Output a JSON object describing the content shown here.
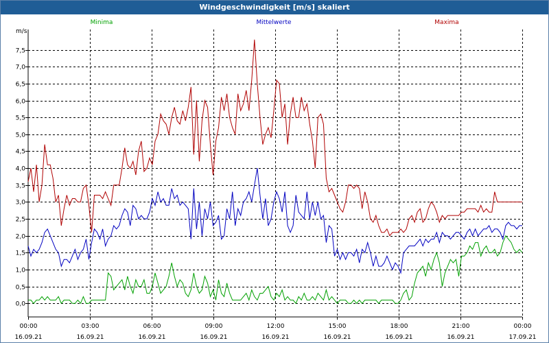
{
  "window": {
    "title": "Windgeschwindigkeit [m/s] skaliert"
  },
  "chart_data": {
    "type": "line",
    "title": "Windgeschwindigkeit [m/s] skaliert",
    "ylabel": "m/s",
    "ylim": [
      -0.4,
      8.1
    ],
    "y_ticks": [
      "0,0",
      "0,5",
      "1,0",
      "1,5",
      "2,0",
      "2,5",
      "3,0",
      "3,5",
      "4,0",
      "4,5",
      "5,0",
      "5,5",
      "6,0",
      "6,5",
      "7,0",
      "7,5"
    ],
    "x_hours_range": [
      0,
      24
    ],
    "x_ticks": [
      {
        "time": "00:00",
        "date": "16.09.21"
      },
      {
        "time": "03:00",
        "date": "16.09.21"
      },
      {
        "time": "06:00",
        "date": "16.09.21"
      },
      {
        "time": "09:00",
        "date": "16.09.21"
      },
      {
        "time": "12:00",
        "date": "16.09.21"
      },
      {
        "time": "15:00",
        "date": "16.09.21"
      },
      {
        "time": "18:00",
        "date": "16.09.21"
      },
      {
        "time": "21:00",
        "date": "16.09.21"
      },
      {
        "time": "00:00",
        "date": "17.09.21"
      }
    ],
    "grid": true,
    "series": [
      {
        "name": "Minima",
        "color": "#00a000",
        "values": [
          0.1,
          0.1,
          0.0,
          0.1,
          0.1,
          0.2,
          0.1,
          0.2,
          0.1,
          0.1,
          0.1,
          0.2,
          0.0,
          0.1,
          0.1,
          0.1,
          0.0,
          0.0,
          0.1,
          0.0,
          0.2,
          0.0,
          0.0,
          0.1,
          0.1,
          0.1,
          0.1,
          0.1,
          0.1,
          0.9,
          0.8,
          0.4,
          0.5,
          0.6,
          0.7,
          0.4,
          0.8,
          0.5,
          0.3,
          0.7,
          0.5,
          0.5,
          0.7,
          0.3,
          0.3,
          0.5,
          0.9,
          0.6,
          0.3,
          0.4,
          0.5,
          0.8,
          1.2,
          0.8,
          0.5,
          0.7,
          0.6,
          0.3,
          0.2,
          0.4,
          0.9,
          0.5,
          0.3,
          0.4,
          0.8,
          0.6,
          0.2,
          0.4,
          0.1,
          0.7,
          0.3,
          0.2,
          0.6,
          0.3,
          0.1,
          0.1,
          0.1,
          0.1,
          0.2,
          0.3,
          0.1,
          0.4,
          0.2,
          0.1,
          0.3,
          0.3,
          0.4,
          0.5,
          0.2,
          0.1,
          0.3,
          0.2,
          0.4,
          0.1,
          0.2,
          0.1,
          0.1,
          0.0,
          0.2,
          0.1,
          0.3,
          0.1,
          0.1,
          0.2,
          0.1,
          0.3,
          0.2,
          0.1,
          0.4,
          0.1,
          0.2,
          0.1,
          0.0,
          0.1,
          0.1,
          0.1,
          0.0,
          0.0,
          0.1,
          0.0,
          0.1,
          0.0,
          0.1,
          0.1,
          0.1,
          0.1,
          0.1,
          0.0,
          0.1,
          0.1,
          0.1,
          0.1,
          0.1,
          0.0,
          0.0,
          0.1,
          0.3,
          0.4,
          0.1,
          0.2,
          0.6,
          0.9,
          1.0,
          1.1,
          0.8,
          1.2,
          1.0,
          1.3,
          1.5,
          1.2,
          0.5,
          0.9,
          1.1,
          1.3,
          1.2,
          1.3,
          0.8,
          1.4,
          1.4,
          1.5,
          1.7,
          1.6,
          1.8,
          1.8,
          1.4,
          1.6,
          1.7,
          1.5,
          1.5,
          1.6,
          1.4,
          1.5,
          1.8,
          2.0,
          1.9,
          1.8,
          1.6,
          1.5,
          1.6,
          1.5
        ]
      },
      {
        "name": "Mittelwerte",
        "color": "#0000c0",
        "values": [
          1.7,
          1.4,
          1.6,
          1.5,
          1.6,
          1.8,
          2.1,
          2.2,
          2.0,
          1.8,
          1.6,
          1.5,
          1.1,
          1.3,
          1.3,
          1.2,
          1.4,
          1.6,
          1.3,
          1.5,
          1.6,
          1.9,
          1.3,
          1.8,
          2.2,
          2.1,
          1.9,
          2.2,
          1.7,
          1.9,
          2.0,
          2.3,
          2.2,
          2.3,
          2.6,
          2.8,
          2.7,
          2.3,
          2.9,
          2.8,
          2.5,
          2.6,
          2.5,
          2.5,
          2.7,
          3.1,
          2.9,
          3.3,
          3.0,
          3.1,
          2.9,
          2.9,
          3.4,
          3.1,
          3.2,
          2.9,
          3.0,
          2.9,
          2.8,
          1.9,
          3.4,
          2.2,
          3.0,
          2.0,
          2.8,
          2.5,
          3.0,
          2.3,
          2.4,
          2.6,
          1.9,
          2.0,
          2.8,
          2.5,
          3.3,
          2.3,
          2.8,
          2.6,
          3.0,
          3.1,
          3.3,
          3.0,
          3.5,
          4.0,
          3.2,
          2.5,
          3.1,
          2.3,
          2.5,
          3.0,
          3.3,
          3.1,
          2.7,
          3.3,
          2.3,
          2.1,
          2.3,
          3.2,
          2.7,
          2.6,
          2.5,
          3.3,
          2.5,
          3.0,
          2.6,
          3.0,
          2.5,
          2.6,
          1.8,
          2.3,
          2.2,
          1.4,
          1.6,
          1.3,
          1.5,
          1.3,
          1.5,
          1.5,
          1.4,
          1.6,
          1.2,
          1.6,
          1.5,
          1.8,
          1.5,
          1.1,
          1.4,
          1.1,
          1.1,
          1.2,
          1.4,
          1.2,
          1.0,
          1.2,
          1.1,
          0.9,
          1.5,
          1.6,
          1.7,
          1.7,
          1.7,
          1.8,
          1.9,
          1.7,
          1.9,
          1.8,
          1.9,
          1.9,
          2.1,
          1.8,
          2.1,
          2.0,
          2.0,
          1.9,
          2.0,
          2.1,
          2.1,
          2.0,
          1.9,
          2.1,
          2.2,
          2.0,
          2.2,
          2.0,
          2.1,
          2.2,
          2.2,
          2.3,
          2.1,
          2.2,
          2.2,
          2.1,
          1.9,
          2.3,
          2.4,
          2.3,
          2.3,
          2.2,
          2.3,
          2.3
        ]
      },
      {
        "name": "Maxima",
        "color": "#b00000",
        "values": [
          3.6,
          4.0,
          3.3,
          4.1,
          3.0,
          3.5,
          4.7,
          4.1,
          4.1,
          3.7,
          3.0,
          3.2,
          2.3,
          2.8,
          3.2,
          2.9,
          3.1,
          3.1,
          3.0,
          3.0,
          3.4,
          3.5,
          2.9,
          2.1,
          3.2,
          3.2,
          3.2,
          3.1,
          3.3,
          3.1,
          2.9,
          3.5,
          3.5,
          3.5,
          4.0,
          4.6,
          4.1,
          4.0,
          4.2,
          3.8,
          4.5,
          4.8,
          3.9,
          4.0,
          4.3,
          4.1,
          4.8,
          5.0,
          5.6,
          5.4,
          5.3,
          5.0,
          5.5,
          5.8,
          5.4,
          5.3,
          5.7,
          5.4,
          5.8,
          6.4,
          4.4,
          6.0,
          4.2,
          5.4,
          6.0,
          5.8,
          4.7,
          3.8,
          4.8,
          5.2,
          6.1,
          5.7,
          6.2,
          5.5,
          5.2,
          5.0,
          6.2,
          5.7,
          5.9,
          6.3,
          5.7,
          6.6,
          7.8,
          6.5,
          5.5,
          4.7,
          5.0,
          5.2,
          4.9,
          5.7,
          6.6,
          6.5,
          5.5,
          5.9,
          4.7,
          5.6,
          6.1,
          5.5,
          5.5,
          6.1,
          5.7,
          5.9,
          5.3,
          4.8,
          4.0,
          5.5,
          5.6,
          5.3,
          3.7,
          3.3,
          3.4,
          3.2,
          3.0,
          2.8,
          2.7,
          3.0,
          3.5,
          3.5,
          3.4,
          3.5,
          3.4,
          2.8,
          3.3,
          3.0,
          2.5,
          2.4,
          2.6,
          2.3,
          2.1,
          2.1,
          2.2,
          2.0,
          2.1,
          2.1,
          2.1,
          2.2,
          2.1,
          2.2,
          2.5,
          2.6,
          2.4,
          2.7,
          2.8,
          2.4,
          2.5,
          2.8,
          3.0,
          2.9,
          2.7,
          2.4,
          2.6,
          2.5,
          2.6,
          2.6,
          2.6,
          2.6,
          2.6,
          2.7,
          2.7,
          2.8,
          2.8,
          2.8,
          2.8,
          2.7,
          2.9,
          2.7,
          2.8,
          2.7,
          2.7,
          3.3,
          3.0,
          3.0,
          3.0,
          3.0,
          3.0,
          3.0,
          3.0,
          3.0,
          3.0,
          3.0
        ]
      }
    ]
  }
}
